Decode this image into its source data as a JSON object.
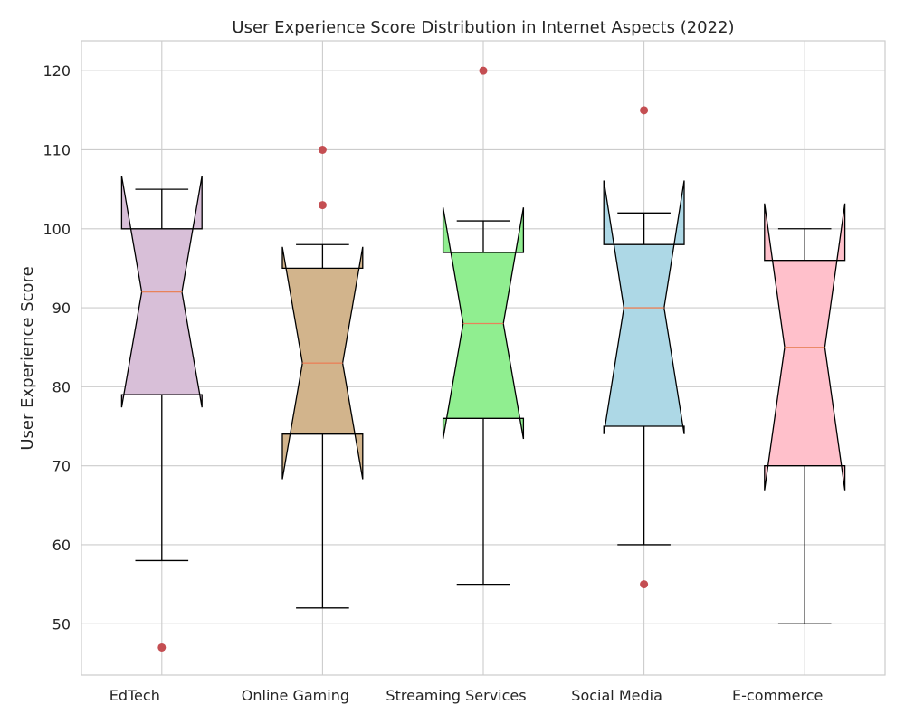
{
  "chart_data": {
    "type": "boxplot",
    "title": "User Experience Score Distribution in Internet Aspects (2022)",
    "xlabel": "",
    "ylabel": "User Experience Score",
    "ylim": [
      43.5,
      123.8
    ],
    "yticks": [
      50,
      60,
      70,
      80,
      90,
      100,
      110,
      120
    ],
    "grid": true,
    "notched": true,
    "categories": [
      "EdTech",
      "Online Gaming",
      "Streaming Services",
      "Social Media",
      "E-commerce"
    ],
    "boxes": [
      {
        "name": "EdTech",
        "whisker_low": 58,
        "q1": 79,
        "median": 92,
        "q3": 100,
        "whisker_high": 105,
        "notch_low": 77.4,
        "notch_high": 106.7,
        "outliers": [
          47
        ],
        "color": "#d8bfd8"
      },
      {
        "name": "Online Gaming",
        "whisker_low": 52,
        "q1": 74,
        "median": 83,
        "q3": 95,
        "whisker_high": 98,
        "notch_low": 68.3,
        "notch_high": 97.7,
        "outliers": [
          110,
          103
        ],
        "color": "#d2b48c"
      },
      {
        "name": "Streaming Services",
        "whisker_low": 55,
        "q1": 76,
        "median": 88,
        "q3": 97,
        "whisker_high": 101,
        "notch_low": 73.4,
        "notch_high": 102.7,
        "outliers": [
          120
        ],
        "color": "#90ee90"
      },
      {
        "name": "Social Media",
        "whisker_low": 60,
        "q1": 75,
        "median": 90,
        "q3": 98,
        "whisker_high": 102,
        "notch_low": 74.0,
        "notch_high": 106.1,
        "outliers": [
          115,
          55
        ],
        "color": "#add8e6"
      },
      {
        "name": "E-commerce",
        "whisker_low": 50,
        "q1": 70,
        "median": 85,
        "q3": 96,
        "whisker_high": 100,
        "notch_low": 66.9,
        "notch_high": 103.2,
        "outliers": [],
        "color": "#ffc0cb"
      }
    ],
    "median_color": "#e8825a",
    "outlier_color": "#c44e52"
  }
}
